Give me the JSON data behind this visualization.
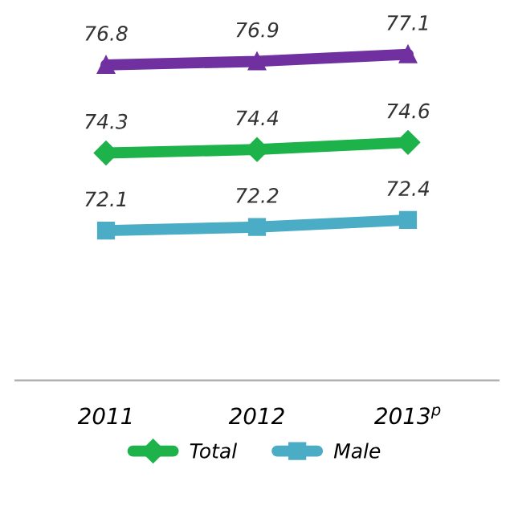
{
  "chart_data": {
    "type": "line",
    "categories": [
      "2011",
      "2012",
      "2013$^{p}$"
    ],
    "series": [
      {
        "color": "#7030a0",
        "marker": "triangle",
        "values": [
          76.8,
          76.9,
          77.1
        ]
      },
      {
        "name": "Total",
        "color": "#1db34a",
        "marker": "diamond",
        "values": [
          74.3,
          74.4,
          74.6
        ]
      },
      {
        "name": "Male",
        "color": "#4bacc6",
        "marker": "square",
        "values": [
          72.1,
          72.2,
          72.4
        ]
      }
    ],
    "data_labels": true,
    "legend": "bottom",
    "grid": false
  }
}
